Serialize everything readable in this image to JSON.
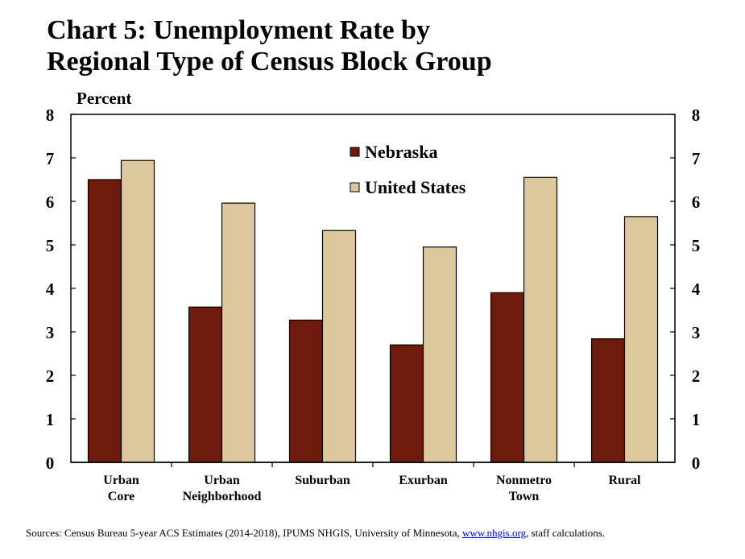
{
  "title": {
    "line1": "Chart 5: Unemployment Rate by",
    "line2": "Regional Type of Census Block Group"
  },
  "chart_data": {
    "type": "bar",
    "ylabel": "Percent",
    "ylim": [
      0,
      8
    ],
    "yticks": [
      0,
      1,
      2,
      3,
      4,
      5,
      6,
      7,
      8
    ],
    "dual_y_axis": true,
    "grid": false,
    "legend_position": "top-center",
    "categories": [
      [
        "Urban",
        "Core"
      ],
      [
        "Urban",
        "Neighborhood"
      ],
      [
        "Suburban"
      ],
      [
        "Exurban"
      ],
      [
        "Nonmetro",
        "Town"
      ],
      [
        "Rural"
      ]
    ],
    "series": [
      {
        "name": "Nebraska",
        "color": "#6e1a0c",
        "values": [
          6.5,
          3.57,
          3.27,
          2.7,
          3.9,
          2.84
        ]
      },
      {
        "name": "United States",
        "color": "#dcc89c",
        "values": [
          6.94,
          5.96,
          5.33,
          4.95,
          6.55,
          5.65
        ]
      }
    ]
  },
  "sources": {
    "prefix": "Sources: Census Bureau 5-year ACS Estimates (2014-2018), IPUMS NHGIS, University of Minnesota, ",
    "link": "www.nhgis.org",
    "suffix": ", staff calculations."
  }
}
